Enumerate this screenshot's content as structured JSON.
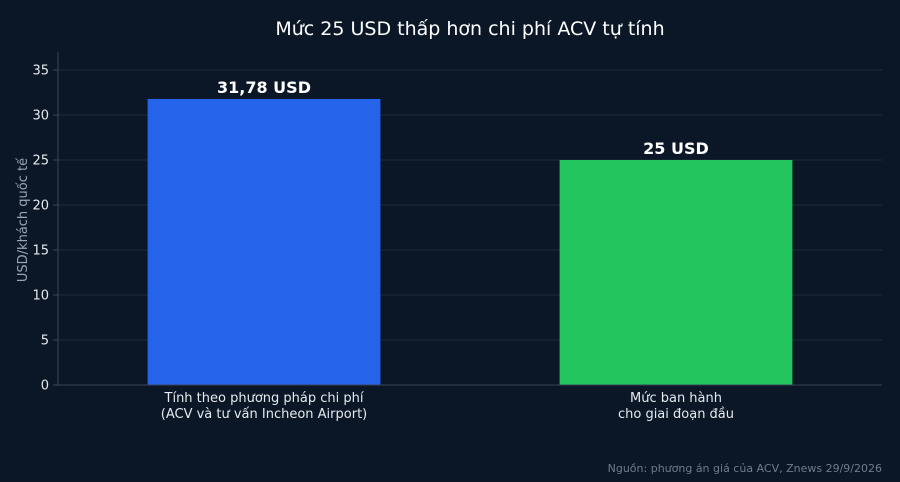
{
  "chart_data": {
    "type": "bar",
    "title": "Mức 25 USD thấp hơn chi phí ACV tự tính",
    "ylabel": "USD/khách quốc tế",
    "xlabel": "",
    "ylim": [
      0,
      37
    ],
    "yticks": [
      0,
      5,
      10,
      15,
      20,
      25,
      30,
      35
    ],
    "grid": true,
    "categories": [
      [
        "Tính theo phương pháp chi phí",
        "(ACV và tư vấn Incheon Airport)"
      ],
      [
        "Mức ban hành",
        "cho giai đoạn đầu"
      ]
    ],
    "values": [
      31.78,
      25
    ],
    "data_labels": [
      "31,78 USD",
      "25 USD"
    ],
    "colors": [
      "#2563eb",
      "#22c55e"
    ],
    "source": "Nguồn: phương án giá của ACV, Znews 29/9/2026"
  }
}
